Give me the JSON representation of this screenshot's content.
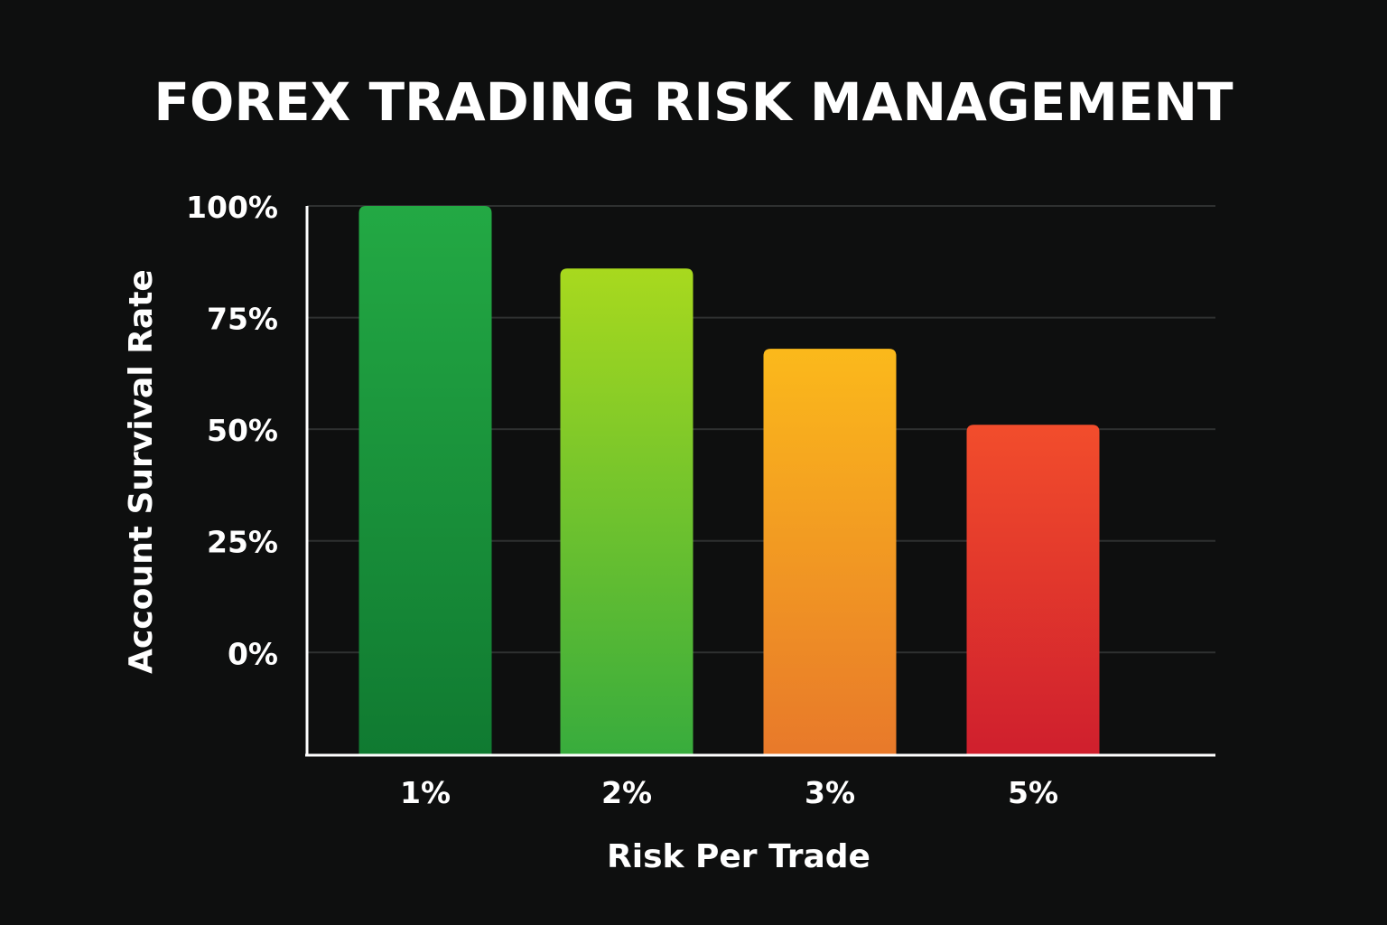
{
  "chart_data": {
    "type": "bar",
    "title": "FOREX TRADING RISK MANAGEMENT",
    "xlabel": "Risk Per Trade",
    "ylabel": "Account Survival Rate",
    "categories": [
      "1%",
      "2%",
      "3%",
      "5%"
    ],
    "values": [
      100,
      86,
      68,
      51
    ],
    "yticks": [
      0,
      25,
      50,
      75,
      100
    ],
    "ytick_labels": [
      "0%",
      "25%",
      "50%",
      "75%",
      "100%"
    ],
    "ylim": [
      -23,
      100
    ],
    "grid": true,
    "legend": "none",
    "bar_colors": [
      [
        "#23a944",
        "#107a31"
      ],
      [
        "#a8d91e",
        "#38ac3d"
      ],
      [
        "#fbb91b",
        "#e8792a"
      ],
      [
        "#f24d2c",
        "#cf1f2d"
      ]
    ],
    "background": "#0e0f0f"
  }
}
